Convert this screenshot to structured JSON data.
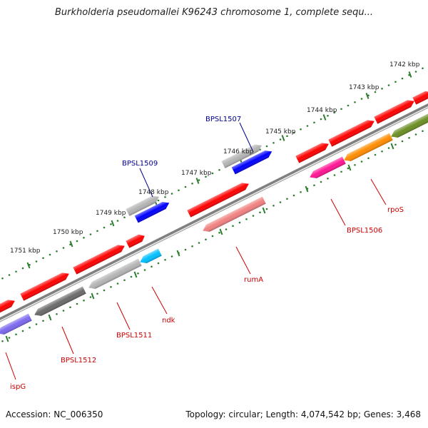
{
  "header": {
    "title": "Burkholderia pseudomallei K96243 chromosome 1, complete sequ..."
  },
  "footer": {
    "accession": "Accession: NC_006350",
    "topology": "Topology: circular; Length: 4,074,542 bp; Genes: 3,468"
  },
  "map": {
    "ticks": [
      {
        "kbp": 1742,
        "label": "1742 kbp"
      },
      {
        "kbp": 1743,
        "label": "1743 kbp"
      },
      {
        "kbp": 1744,
        "label": "1744 kbp"
      },
      {
        "kbp": 1745,
        "label": "1745 kbp"
      },
      {
        "kbp": 1746,
        "label": "1746 kbp"
      },
      {
        "kbp": 1747,
        "label": "1747 kbp"
      },
      {
        "kbp": 1748,
        "label": "1748 kbp"
      },
      {
        "kbp": 1749,
        "label": "1749 kbp"
      },
      {
        "kbp": 1750,
        "label": "1750 kbp"
      },
      {
        "kbp": 1751,
        "label": "1751 kbp"
      }
    ],
    "labels": [
      {
        "text": "BPSL1507",
        "color": "#00008b"
      },
      {
        "text": "BPSL1509",
        "color": "#00008b"
      },
      {
        "text": "BPSL1506",
        "color": "#cc0000"
      },
      {
        "text": "rpoS",
        "color": "#cc0000"
      },
      {
        "text": "rumA",
        "color": "#cc0000"
      },
      {
        "text": "ndk",
        "color": "#cc0000"
      },
      {
        "text": "BPSL1511",
        "color": "#cc0000"
      },
      {
        "text": "BPSL1512",
        "color": "#cc0000"
      },
      {
        "text": "ispG",
        "color": "#cc0000"
      }
    ],
    "colors": {
      "backbone": "#808080",
      "tick_dots": "#2e7d2e",
      "gene_red": "#ff0000",
      "gene_blue": "#0000ff",
      "gene_gray": "#b4b4b4",
      "gene_darkgray": "#6a6a6a",
      "gene_pink": "#f08080",
      "gene_magenta": "#ff1493",
      "gene_orange": "#ff8c00",
      "gene_olive": "#6b8e23",
      "gene_cyan": "#00bfff",
      "gene_slateblue": "#7b68ee",
      "gene_khaki": "#bdb76b"
    }
  }
}
